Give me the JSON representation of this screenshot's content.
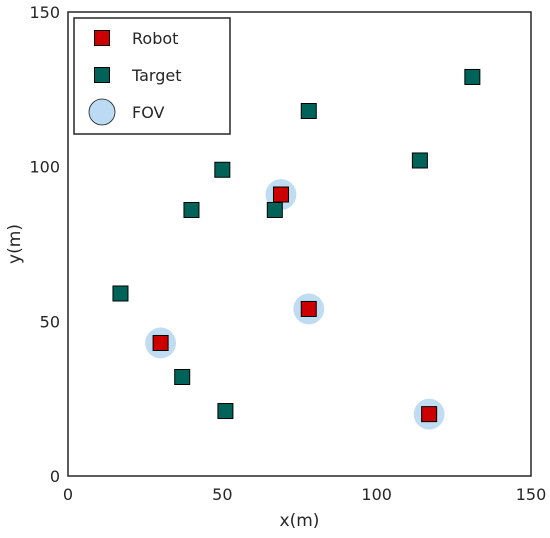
{
  "chart_data": {
    "type": "scatter",
    "xlabel": "x(m)",
    "ylabel": "y(m)",
    "xlim": [
      0,
      150
    ],
    "ylim": [
      0,
      150
    ],
    "xticks": [
      "0",
      "50",
      "100",
      "150"
    ],
    "yticks": [
      "0",
      "50",
      "100",
      "150"
    ],
    "grid": false,
    "legend_position": "top-left",
    "legend": [
      {
        "label": "Robot",
        "marker": "square",
        "color": "#cc0000"
      },
      {
        "label": "Target",
        "marker": "square",
        "color": "#00635a"
      },
      {
        "label": "FOV",
        "marker": "circle",
        "color": "#bcdaf1"
      }
    ],
    "series": [
      {
        "name": "Robot",
        "color": "#cc0000",
        "points": [
          {
            "x": 30,
            "y": 43
          },
          {
            "x": 69,
            "y": 91
          },
          {
            "x": 78,
            "y": 54
          },
          {
            "x": 117,
            "y": 20
          }
        ]
      },
      {
        "name": "Target",
        "color": "#00635a",
        "points": [
          {
            "x": 17,
            "y": 59
          },
          {
            "x": 37,
            "y": 32
          },
          {
            "x": 40,
            "y": 86
          },
          {
            "x": 50,
            "y": 99
          },
          {
            "x": 51,
            "y": 21
          },
          {
            "x": 67,
            "y": 86
          },
          {
            "x": 78,
            "y": 118
          },
          {
            "x": 114,
            "y": 102
          },
          {
            "x": 131,
            "y": 129
          }
        ]
      },
      {
        "name": "FOV",
        "color": "#bcdaf1",
        "radius": 5,
        "points": [
          {
            "x": 30,
            "y": 43
          },
          {
            "x": 69,
            "y": 91
          },
          {
            "x": 78,
            "y": 54
          },
          {
            "x": 117,
            "y": 20
          }
        ]
      }
    ]
  }
}
